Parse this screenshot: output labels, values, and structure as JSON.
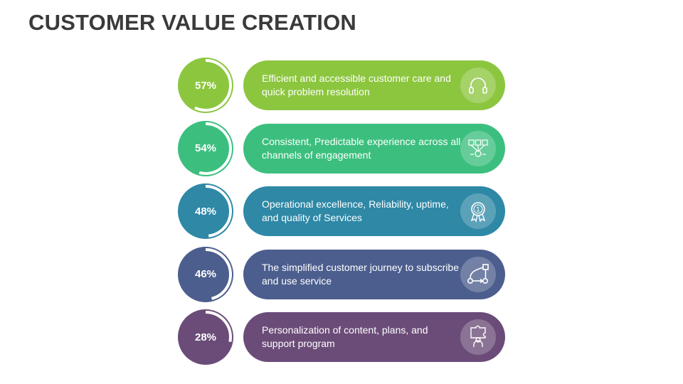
{
  "title": "CUSTOMER VALUE CREATION",
  "items": [
    {
      "percent": 57,
      "label": "57%",
      "text": "Efficient and accessible customer care and quick problem resolution",
      "color": "#8cc63f",
      "icon": "headphones-icon"
    },
    {
      "percent": 54,
      "label": "54%",
      "text": "Consistent, Predictable experience across all channels of engagement",
      "color": "#3cbf7e",
      "icon": "omnichannel-icon"
    },
    {
      "percent": 48,
      "label": "48%",
      "text": "Operational excellence, Reliability, uptime, and quality of Services",
      "color": "#2e88a6",
      "icon": "award-badge-icon"
    },
    {
      "percent": 46,
      "label": "46%",
      "text": "The simplified customer journey to subscribe and use service",
      "color": "#4c5e8e",
      "icon": "journey-icon"
    },
    {
      "percent": 28,
      "label": "28%",
      "text": "Personalization of content, plans, and support program",
      "color": "#6b4c78",
      "icon": "puzzle-person-icon"
    }
  ]
}
